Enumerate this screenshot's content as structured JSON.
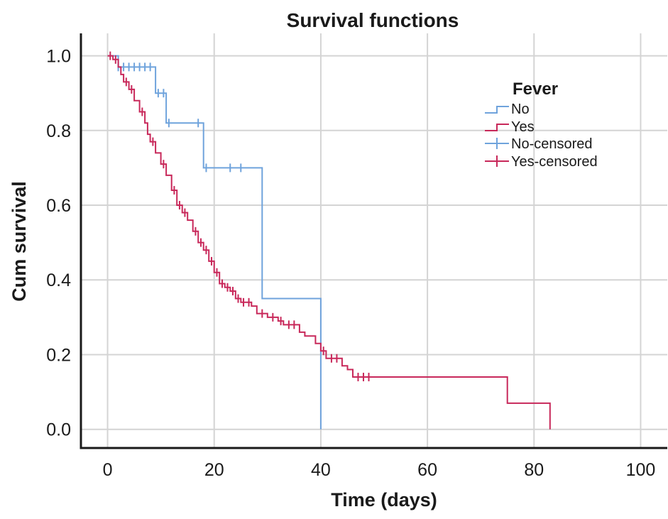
{
  "chart_data": {
    "type": "line",
    "title": "Survival functions",
    "xlabel": "Time (days)",
    "ylabel": "Cum survival",
    "xlim": [
      -5,
      105
    ],
    "ylim": [
      -0.05,
      1.06
    ],
    "xticks": [
      0,
      20,
      40,
      60,
      80,
      100
    ],
    "xtick_labels": [
      "0",
      "20",
      "40",
      "60",
      "80",
      "100"
    ],
    "yticks": [
      0.0,
      0.2,
      0.4,
      0.6,
      0.8,
      1.0
    ],
    "ytick_labels": [
      "0.0",
      "0.2",
      "0.4",
      "0.6",
      "0.8",
      "1.0"
    ],
    "grid": true,
    "legend": {
      "title": "Fever",
      "placement": "top-right",
      "entries": [
        "No",
        "Yes",
        "No-censored",
        "Yes-censored"
      ]
    },
    "series": [
      {
        "name": "No",
        "color": "#6fa3dc",
        "step": [
          [
            0,
            1.0
          ],
          [
            2,
            1.0
          ],
          [
            2,
            0.97
          ],
          [
            9,
            0.97
          ],
          [
            9,
            0.9
          ],
          [
            11,
            0.9
          ],
          [
            11,
            0.82
          ],
          [
            18,
            0.82
          ],
          [
            18,
            0.7
          ],
          [
            29,
            0.7
          ],
          [
            29,
            0.35
          ],
          [
            40,
            0.35
          ],
          [
            40,
            0.0
          ]
        ],
        "censored": [
          [
            2,
            0.97
          ],
          [
            3,
            0.97
          ],
          [
            4,
            0.97
          ],
          [
            5,
            0.97
          ],
          [
            6,
            0.97
          ],
          [
            7,
            0.97
          ],
          [
            8,
            0.97
          ],
          [
            9.5,
            0.9
          ],
          [
            10.5,
            0.9
          ],
          [
            11.5,
            0.82
          ],
          [
            17,
            0.82
          ],
          [
            18.5,
            0.7
          ],
          [
            23,
            0.7
          ],
          [
            25,
            0.7
          ]
        ]
      },
      {
        "name": "Yes",
        "color": "#c8285a",
        "step": [
          [
            0,
            1.0
          ],
          [
            1,
            1.0
          ],
          [
            1,
            0.99
          ],
          [
            2,
            0.99
          ],
          [
            2,
            0.97
          ],
          [
            2.5,
            0.97
          ],
          [
            2.5,
            0.95
          ],
          [
            3,
            0.95
          ],
          [
            3,
            0.93
          ],
          [
            4,
            0.93
          ],
          [
            4,
            0.91
          ],
          [
            5,
            0.91
          ],
          [
            5,
            0.88
          ],
          [
            6,
            0.88
          ],
          [
            6,
            0.85
          ],
          [
            7,
            0.85
          ],
          [
            7,
            0.82
          ],
          [
            7.5,
            0.82
          ],
          [
            7.5,
            0.79
          ],
          [
            8,
            0.79
          ],
          [
            8,
            0.77
          ],
          [
            9,
            0.77
          ],
          [
            9,
            0.74
          ],
          [
            10,
            0.74
          ],
          [
            10,
            0.71
          ],
          [
            11,
            0.71
          ],
          [
            11,
            0.68
          ],
          [
            12,
            0.68
          ],
          [
            12,
            0.64
          ],
          [
            13,
            0.64
          ],
          [
            13,
            0.6
          ],
          [
            14,
            0.6
          ],
          [
            14,
            0.58
          ],
          [
            15,
            0.58
          ],
          [
            15,
            0.56
          ],
          [
            16,
            0.56
          ],
          [
            16,
            0.53
          ],
          [
            17,
            0.53
          ],
          [
            17,
            0.5
          ],
          [
            18,
            0.5
          ],
          [
            18,
            0.48
          ],
          [
            19,
            0.48
          ],
          [
            19,
            0.45
          ],
          [
            20,
            0.45
          ],
          [
            20,
            0.42
          ],
          [
            21,
            0.42
          ],
          [
            21,
            0.39
          ],
          [
            22,
            0.39
          ],
          [
            22,
            0.38
          ],
          [
            23,
            0.38
          ],
          [
            23,
            0.37
          ],
          [
            24,
            0.37
          ],
          [
            24,
            0.35
          ],
          [
            25,
            0.35
          ],
          [
            25,
            0.34
          ],
          [
            27,
            0.34
          ],
          [
            27,
            0.33
          ],
          [
            28,
            0.33
          ],
          [
            28,
            0.31
          ],
          [
            30,
            0.31
          ],
          [
            30,
            0.3
          ],
          [
            32,
            0.3
          ],
          [
            32,
            0.29
          ],
          [
            33,
            0.29
          ],
          [
            33,
            0.28
          ],
          [
            36,
            0.28
          ],
          [
            36,
            0.26
          ],
          [
            37,
            0.26
          ],
          [
            37,
            0.25
          ],
          [
            39,
            0.25
          ],
          [
            39,
            0.23
          ],
          [
            40,
            0.23
          ],
          [
            40,
            0.21
          ],
          [
            41,
            0.21
          ],
          [
            41,
            0.19
          ],
          [
            44,
            0.19
          ],
          [
            44,
            0.17
          ],
          [
            45,
            0.17
          ],
          [
            45,
            0.16
          ],
          [
            46,
            0.16
          ],
          [
            46,
            0.14
          ],
          [
            75,
            0.14
          ],
          [
            75,
            0.07
          ],
          [
            83,
            0.07
          ],
          [
            83,
            0.0
          ]
        ],
        "censored": [
          [
            0.5,
            1.0
          ],
          [
            1.5,
            0.99
          ],
          [
            3.5,
            0.93
          ],
          [
            4.5,
            0.91
          ],
          [
            6.5,
            0.85
          ],
          [
            8.5,
            0.77
          ],
          [
            10.5,
            0.71
          ],
          [
            12.5,
            0.64
          ],
          [
            13.5,
            0.6
          ],
          [
            14.5,
            0.58
          ],
          [
            16.5,
            0.53
          ],
          [
            17.5,
            0.5
          ],
          [
            18.5,
            0.48
          ],
          [
            19.5,
            0.45
          ],
          [
            20.5,
            0.42
          ],
          [
            21.5,
            0.39
          ],
          [
            22.5,
            0.38
          ],
          [
            23.5,
            0.37
          ],
          [
            24.5,
            0.35
          ],
          [
            25.5,
            0.34
          ],
          [
            26.5,
            0.34
          ],
          [
            29,
            0.31
          ],
          [
            31,
            0.3
          ],
          [
            32.5,
            0.29
          ],
          [
            34,
            0.28
          ],
          [
            35,
            0.28
          ],
          [
            40.5,
            0.21
          ],
          [
            42,
            0.19
          ],
          [
            43,
            0.19
          ],
          [
            47,
            0.14
          ],
          [
            48,
            0.14
          ],
          [
            49,
            0.14
          ]
        ]
      }
    ]
  }
}
